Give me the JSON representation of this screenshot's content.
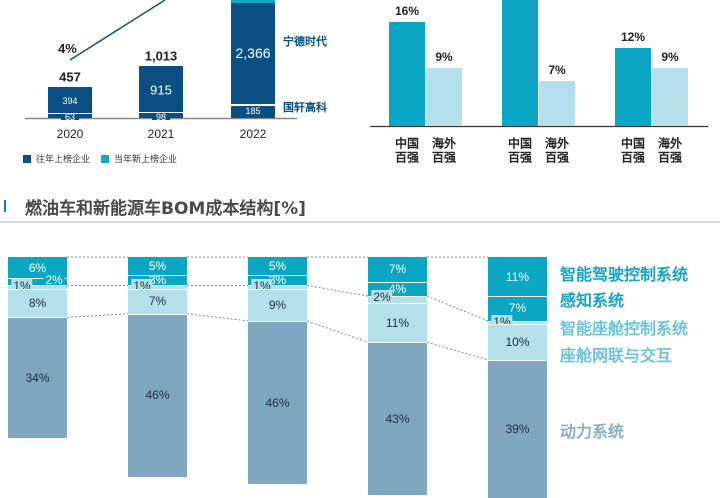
{
  "chart_data": [
    {
      "type": "bar",
      "stacked": true,
      "categories": [
        "2020",
        "2021",
        "2022"
      ],
      "series": [
        {
          "name": "往年上榜企业",
          "values": [
            394,
            915,
            null
          ],
          "color": "#0b4f82"
        },
        {
          "name": "当年新上榜企业",
          "values": [
            63,
            98,
            null
          ],
          "color": "#14a8c8"
        }
      ],
      "segment_labels": {
        "2022": [
          {
            "value": "2,366",
            "company": "宁德时代"
          },
          {
            "value": "185",
            "company": "国轩高科"
          }
        ]
      },
      "totals": [
        "457",
        "1,013",
        null
      ],
      "line_annotation": "4%",
      "legend": [
        "往年上榜企业",
        "当年新上榜企业"
      ],
      "legend_position": "bottom-left"
    },
    {
      "type": "bar",
      "categories": [
        "中国\n百强",
        "海外\n百强"
      ],
      "groups": [
        {
          "values": [
            16,
            9
          ],
          "labels": [
            "16%",
            "9%"
          ]
        },
        {
          "values": [
            null,
            7
          ],
          "labels": [
            "",
            "7%"
          ]
        },
        {
          "values": [
            12,
            9
          ],
          "labels": [
            "12%",
            "9%"
          ]
        }
      ],
      "tick_labels": [
        [
          "中国",
          "百强"
        ],
        [
          "海外",
          "百强"
        ]
      ],
      "colors": [
        "#0aa6c4",
        "#b3e0ea"
      ]
    },
    {
      "type": "bar",
      "stacked": true,
      "title": "燃油车和新能源车BOM成本结构[%]",
      "series": [
        {
          "name": "智能驾驶控制系统",
          "values": [
            6,
            5,
            5,
            7,
            11
          ],
          "color": "#0aa6c4",
          "labelColor": "#1aa3c0"
        },
        {
          "name": "感知系统",
          "values": [
            2,
            3,
            3,
            4,
            7
          ],
          "color": "#0aa6c4",
          "labelColor": "#1aa3c0"
        },
        {
          "name": "智能座舱控制系统",
          "values": [
            1,
            1,
            1,
            2,
            1
          ],
          "color": "#b3e0ea",
          "labelColor": "#6cc4d8"
        },
        {
          "name": "座舱网联与交互",
          "values": [
            8,
            7,
            9,
            11,
            10
          ],
          "color": "#b3e0ea",
          "labelColor": "#6cc4d8"
        },
        {
          "name": "动力系统",
          "values": [
            34,
            46,
            46,
            43,
            39
          ],
          "color": "#7fa7c0",
          "labelColor": "#8aaec4"
        }
      ],
      "legend_position": "right"
    }
  ]
}
